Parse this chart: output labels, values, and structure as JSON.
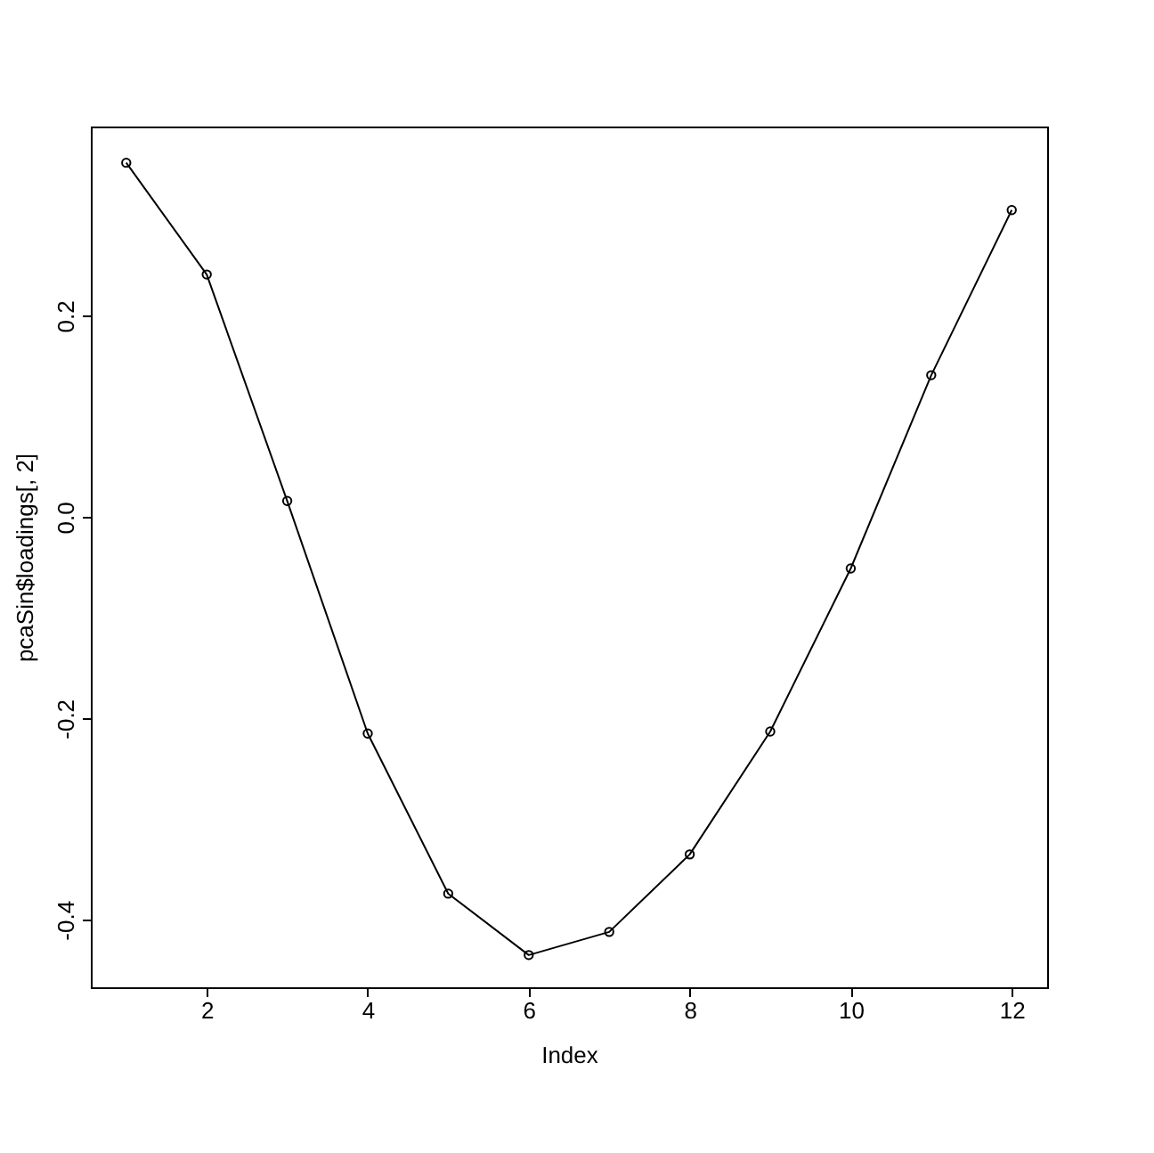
{
  "chart_data": {
    "type": "line",
    "xlabel": "Index",
    "ylabel": "pcaSin$loadings[, 2]",
    "x": [
      1,
      2,
      3,
      4,
      5,
      6,
      7,
      8,
      9,
      10,
      11,
      12
    ],
    "series": [
      {
        "color": "#000000",
        "values": [
          0.352,
          0.241,
          0.016,
          -0.215,
          -0.374,
          -0.435,
          -0.412,
          -0.335,
          -0.213,
          -0.051,
          0.141,
          0.305
        ]
      }
    ],
    "xlim": [
      0.56,
      12.44
    ],
    "ylim": [
      -0.467,
      0.388
    ],
    "xticks": [
      2,
      4,
      6,
      8,
      10,
      12
    ],
    "yticks": [
      {
        "value": -0.4,
        "label": "-0.4"
      },
      {
        "value": -0.2,
        "label": "-0.2"
      },
      {
        "value": 0,
        "label": "0.0"
      },
      {
        "value": 0.2,
        "label": "0.2"
      }
    ],
    "grid": false,
    "marker": "circle",
    "line_style": "solid"
  }
}
